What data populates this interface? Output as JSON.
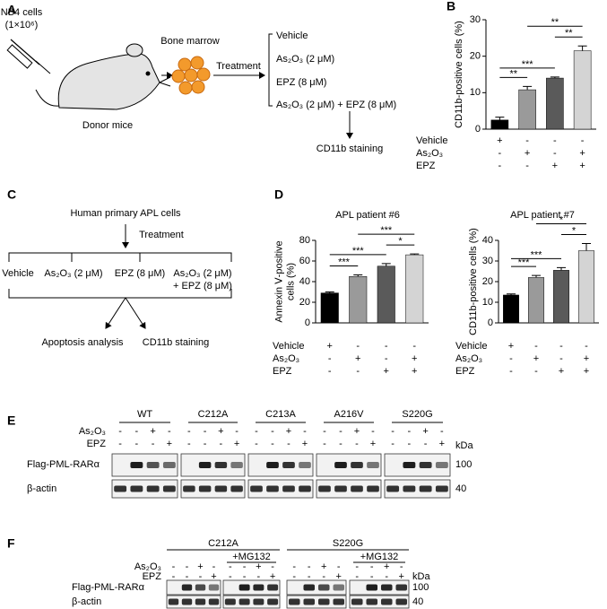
{
  "panel_a": {
    "label": "A",
    "cells": "NB4 cells",
    "dose": "(1×10⁶)",
    "donor": "Donor mice",
    "marrow": "Bone marrow",
    "treatment": "Treatment",
    "conditions": [
      "Vehicle",
      "As₂O₃ (2 μM)",
      "EPZ (8 μM)",
      "As₂O₃ (2 μM) + EPZ (8 μM)"
    ],
    "readout": "CD11b staining"
  },
  "panel_c": {
    "label": "C",
    "source": "Human primary APL cells",
    "treatment": "Treatment",
    "conditions": [
      "Vehicle",
      "As₂O₃ (2 μM)",
      "EPZ (8 μM)",
      "As₂O₃ (2 μM)",
      "+ EPZ (8 μM)"
    ],
    "readouts": [
      "Apoptosis analysis",
      "CD11b staining"
    ]
  },
  "chart_data": [
    {
      "type": "bar",
      "label": "B",
      "y_label": [
        "CD11b-positive cells (%)"
      ],
      "values": [
        2.5,
        10.8,
        14,
        21.5
      ],
      "errors": [
        0.8,
        0.9,
        0.3,
        1.3
      ],
      "colors": [
        "#000000",
        "#9a9a9a",
        "#5a5a5a",
        "#d4d4d4"
      ],
      "ylim": [
        0,
        30
      ],
      "yticks": [
        0,
        10,
        20,
        30
      ],
      "conditions": [
        {
          "name": "Vehicle",
          "signs": [
            "+",
            "-",
            "-",
            "-"
          ]
        },
        {
          "name": "As₂O₃",
          "signs": [
            "-",
            "+",
            "-",
            "+"
          ]
        },
        {
          "name": "EPZ",
          "signs": [
            "-",
            "-",
            "+",
            "+"
          ]
        }
      ],
      "significance": [
        "**",
        "***",
        "**",
        "**"
      ]
    },
    {
      "type": "bar",
      "label": "D",
      "title": "APL patient #6",
      "y_label": [
        "Annexin Ⅴ-positive",
        "cells (%)"
      ],
      "values": [
        29,
        45,
        55,
        66
      ],
      "errors": [
        1,
        1.5,
        2.5,
        0.8
      ],
      "colors": [
        "#000000",
        "#9a9a9a",
        "#5a5a5a",
        "#d4d4d4"
      ],
      "ylim": [
        0,
        80
      ],
      "yticks": [
        0,
        20,
        40,
        60,
        80
      ],
      "conditions": [
        {
          "name": "Vehicle",
          "signs": [
            "+",
            "-",
            "-",
            "-"
          ]
        },
        {
          "name": "As₂O₃",
          "signs": [
            "-",
            "+",
            "-",
            "+"
          ]
        },
        {
          "name": "EPZ",
          "signs": [
            "-",
            "-",
            "+",
            "+"
          ]
        }
      ],
      "significance": [
        "***",
        "***",
        "***",
        "*"
      ]
    },
    {
      "type": "bar",
      "title": "APL patient #7",
      "y_label": [
        "CD11b-positive cells (%)"
      ],
      "values": [
        13.5,
        22,
        25.5,
        35
      ],
      "errors": [
        0.5,
        1,
        1.3,
        3.5
      ],
      "colors": [
        "#000000",
        "#9a9a9a",
        "#5a5a5a",
        "#d4d4d4"
      ],
      "ylim": [
        0,
        40
      ],
      "yticks": [
        0,
        10,
        20,
        30,
        40
      ],
      "conditions": [
        {
          "name": "Vehicle",
          "signs": [
            "+",
            "-",
            "-",
            "-"
          ]
        },
        {
          "name": "As₂O₃",
          "signs": [
            "-",
            "+",
            "-",
            "+"
          ]
        },
        {
          "name": "EPZ",
          "signs": [
            "-",
            "-",
            "+",
            "+"
          ]
        }
      ],
      "significance": [
        "***",
        "***",
        "*",
        "*"
      ]
    }
  ],
  "panel_e": {
    "label": "E",
    "groups": [
      "WT",
      "C212A",
      "C213A",
      "A216V",
      "S220G"
    ],
    "treatments": [
      {
        "name": "As₂O₃",
        "signs": [
          "-",
          "-",
          "+",
          "-"
        ]
      },
      {
        "name": "EPZ",
        "signs": [
          "-",
          "-",
          "-",
          "+"
        ]
      }
    ],
    "unit": "kDa",
    "blots": [
      {
        "name": "Flag-PML-RARα",
        "marker": "100"
      },
      {
        "name": "β-actin",
        "marker": "40"
      }
    ]
  },
  "panel_f": {
    "label": "F",
    "groups": [
      "C212A",
      "S220G"
    ],
    "subgroup": "+MG132",
    "treatments": [
      {
        "name": "As₂O₃",
        "signs": [
          "-",
          "-",
          "+",
          "-"
        ]
      },
      {
        "name": "EPZ",
        "signs": [
          "-",
          "-",
          "-",
          "+"
        ]
      }
    ],
    "unit": "kDa",
    "blots": [
      {
        "name": "Flag-PML-RARα",
        "marker": "100"
      },
      {
        "name": "β-actin",
        "marker": "40"
      }
    ]
  }
}
